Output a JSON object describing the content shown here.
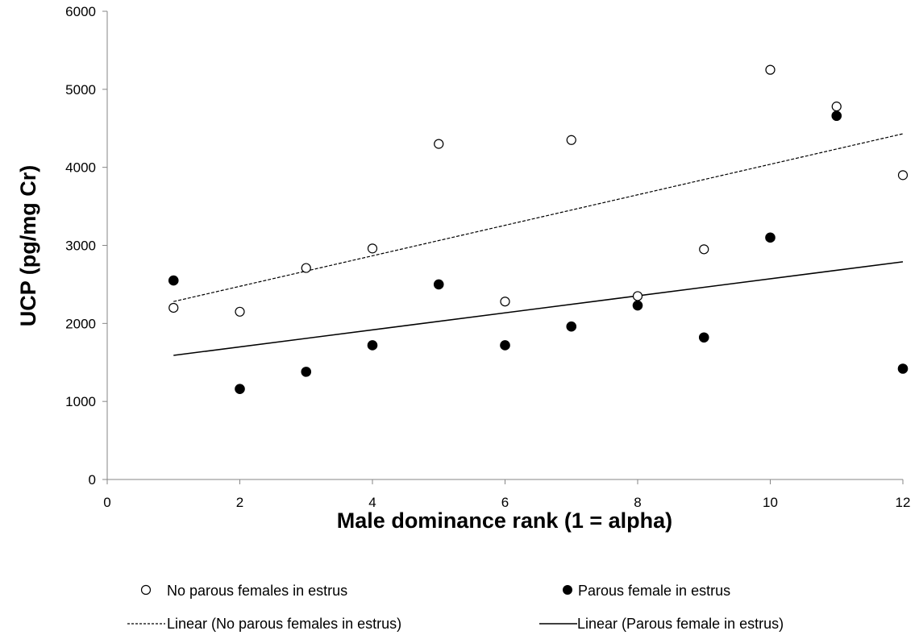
{
  "chart_data": {
    "type": "scatter",
    "title": "",
    "xlabel": "Male dominance rank (1 = alpha)",
    "ylabel": "UCP (pg/mg Cr)",
    "xlim": [
      0,
      12
    ],
    "ylim": [
      0,
      6000
    ],
    "xticks": [
      "0",
      "2",
      "4",
      "6",
      "8",
      "10",
      "12"
    ],
    "yticks": [
      "0",
      "1000",
      "2000",
      "3000",
      "4000",
      "5000",
      "6000"
    ],
    "grid": false,
    "legend_position": "bottom",
    "series": [
      {
        "name": "No parous females in estrus",
        "marker": "open-circle",
        "color": "#000000",
        "points": [
          {
            "x": 1,
            "y": 2200
          },
          {
            "x": 2,
            "y": 2150
          },
          {
            "x": 3,
            "y": 2710
          },
          {
            "x": 4,
            "y": 2960
          },
          {
            "x": 5,
            "y": 4300
          },
          {
            "x": 6,
            "y": 2280
          },
          {
            "x": 7,
            "y": 4350
          },
          {
            "x": 8,
            "y": 2350
          },
          {
            "x": 9,
            "y": 2950
          },
          {
            "x": 10,
            "y": 5250
          },
          {
            "x": 11,
            "y": 4780
          },
          {
            "x": 12,
            "y": 3900
          }
        ]
      },
      {
        "name": "Parous female in estrus",
        "marker": "filled-circle",
        "color": "#000000",
        "points": [
          {
            "x": 1,
            "y": 2550
          },
          {
            "x": 2,
            "y": 1160
          },
          {
            "x": 3,
            "y": 1380
          },
          {
            "x": 4,
            "y": 1720
          },
          {
            "x": 5,
            "y": 2500
          },
          {
            "x": 6,
            "y": 1720
          },
          {
            "x": 7,
            "y": 1960
          },
          {
            "x": 8,
            "y": 2230
          },
          {
            "x": 9,
            "y": 1820
          },
          {
            "x": 10,
            "y": 3100
          },
          {
            "x": 11,
            "y": 4660
          },
          {
            "x": 12,
            "y": 1420
          }
        ]
      }
    ],
    "trendlines": [
      {
        "name": "Linear (No parous females in estrus)",
        "style": "dashed",
        "x": [
          1,
          12
        ],
        "y": [
          2280,
          4430
        ]
      },
      {
        "name": "Linear (Parous female in estrus)",
        "style": "solid",
        "x": [
          1,
          12
        ],
        "y": [
          1590,
          2790
        ]
      }
    ]
  }
}
